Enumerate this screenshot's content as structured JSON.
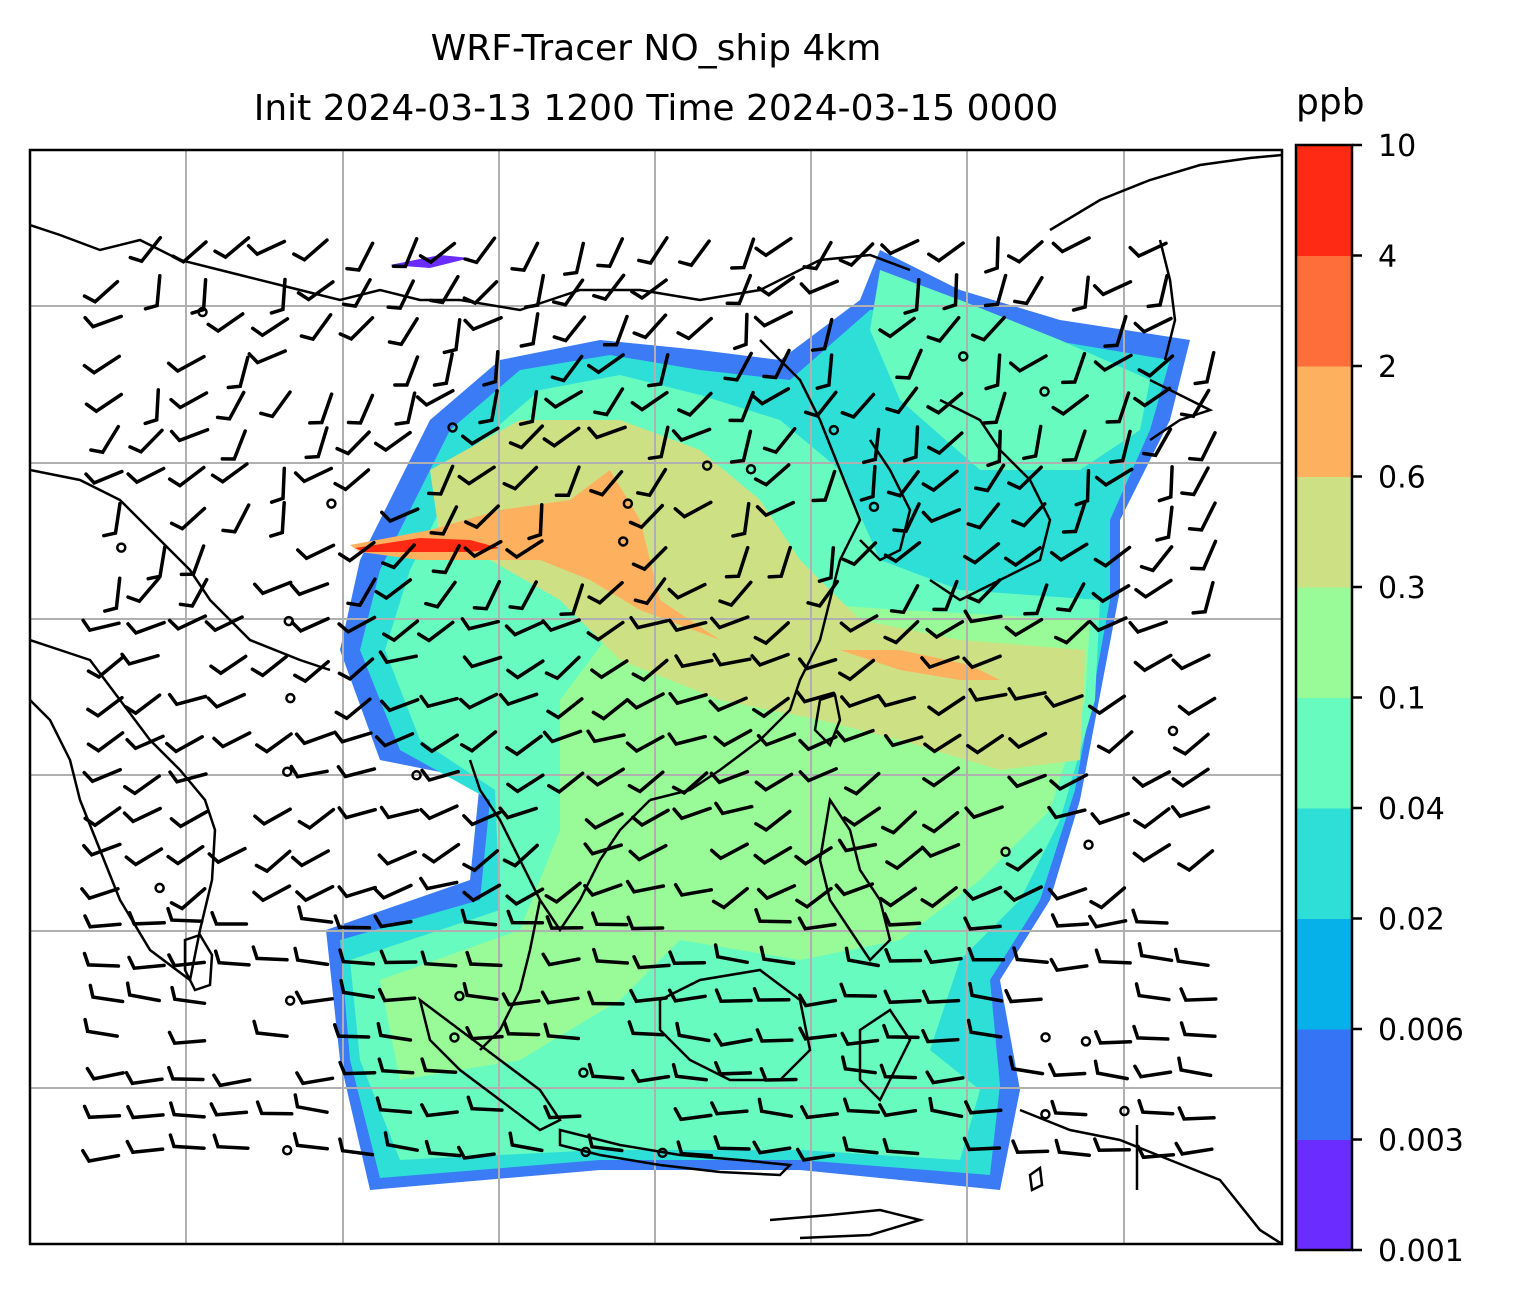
{
  "title_line1": "WRF-Tracer NO_ship 4km",
  "title_line2": "Init 2024-03-13 1200 Time 2024-03-15 0000",
  "colorbar": {
    "unit": "ppb",
    "levels": [
      "0.001",
      "0.003",
      "0.006",
      "0.02",
      "0.04",
      "0.1",
      "0.3",
      "0.6",
      "2",
      "4",
      "10"
    ],
    "colors": [
      "#6a2cff",
      "#3575f5",
      "#06b0e9",
      "#2ddfd6",
      "#67fbc0",
      "#98fb98",
      "#cde184",
      "#fdb05e",
      "#fd6e3a",
      "#ff2a13"
    ]
  },
  "map": {
    "gridlines": true,
    "gridline_color": "#b0b0b0",
    "coastline_color": "#000000",
    "wind_barb_color": "#000000"
  }
}
